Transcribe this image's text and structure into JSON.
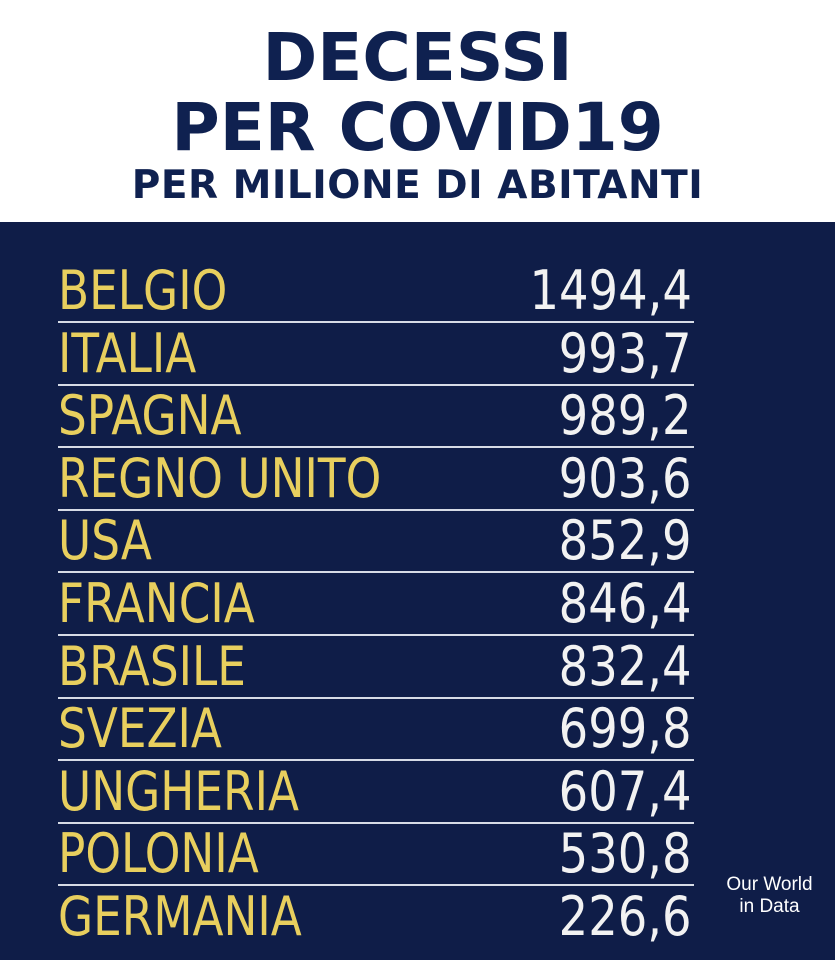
{
  "header": {
    "title_line1": "DECESSI",
    "title_line2": "PER COVID19",
    "subtitle": "PER MILIONE DI ABITANTI"
  },
  "source": {
    "line1": "Our World",
    "line2": "in Data"
  },
  "colors": {
    "title": "#0f2150",
    "panel_background": "#0f1d48",
    "country_text": "#e8cf5e",
    "value_text": "#f2f2f2",
    "row_rule": "#d6dbe6"
  },
  "chart_data": {
    "type": "table",
    "title": "DECESSI PER COVID19",
    "subtitle": "PER MILIONE DI ABITANTI",
    "columns": [
      "country",
      "value"
    ],
    "rows": [
      {
        "country": "BELGIO",
        "value": "1494,4"
      },
      {
        "country": "ITALIA",
        "value": "993,7"
      },
      {
        "country": "SPAGNA",
        "value": "989,2"
      },
      {
        "country": "REGNO UNITO",
        "value": "903,6"
      },
      {
        "country": "USA",
        "value": "852,9"
      },
      {
        "country": "FRANCIA",
        "value": "846,4"
      },
      {
        "country": "BRASILE",
        "value": "832,4"
      },
      {
        "country": "SVEZIA",
        "value": "699,8"
      },
      {
        "country": "UNGHERIA",
        "value": "607,4"
      },
      {
        "country": "POLONIA",
        "value": "530,8"
      },
      {
        "country": "GERMANIA",
        "value": "226,6"
      }
    ]
  }
}
